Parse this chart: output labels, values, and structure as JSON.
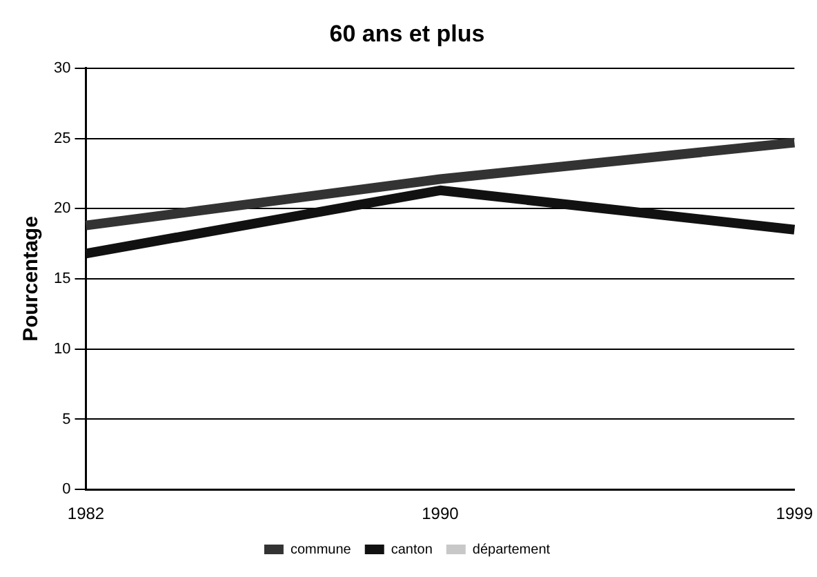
{
  "chart_data": {
    "type": "line",
    "title": "60 ans et plus",
    "ylabel": "Pourcentage",
    "categories": [
      "1982",
      "1990",
      "1999"
    ],
    "series": [
      {
        "name": "commune",
        "color": "#333333",
        "values": [
          18.8,
          22.1,
          24.7
        ]
      },
      {
        "name": "canton",
        "color": "#111111",
        "values": [
          16.8,
          21.3,
          18.5
        ]
      },
      {
        "name": "département",
        "color": "#c8c8c8",
        "values": [
          null,
          null,
          null
        ]
      }
    ],
    "ylim": [
      0,
      30
    ],
    "yticks": [
      0,
      5,
      10,
      15,
      20,
      25,
      30
    ],
    "grid": "y",
    "legend": "bottom",
    "marker": "none",
    "line_style": "solid"
  }
}
